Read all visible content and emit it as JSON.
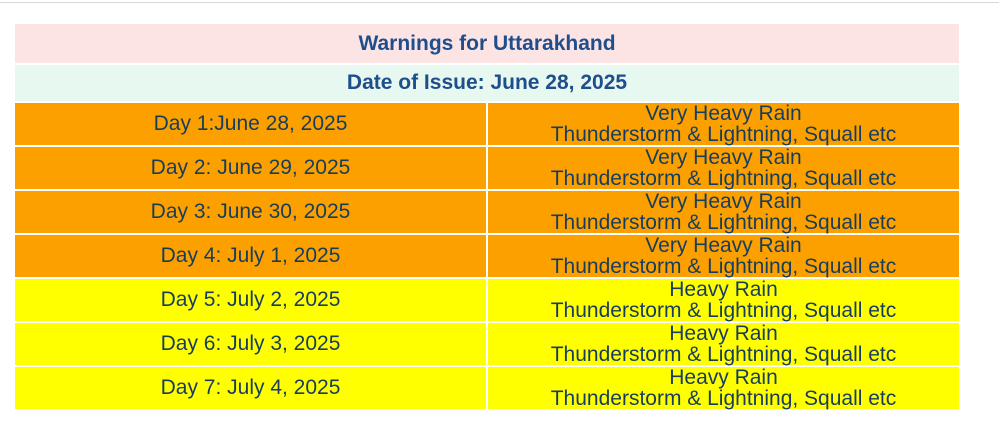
{
  "title": "Warnings for Uttarakhand",
  "date_of_issue": "Date of Issue: June 28, 2025",
  "days": [
    {
      "day": "Day 1:June 28, 2025",
      "line1": "Very Heavy Rain",
      "line2": "Thunderstorm & Lightning, Squall etc",
      "level": "orange"
    },
    {
      "day": "Day 2: June 29, 2025",
      "line1": "Very Heavy Rain",
      "line2": "Thunderstorm & Lightning, Squall etc",
      "level": "orange"
    },
    {
      "day": "Day 3: June 30, 2025",
      "line1": "Very Heavy Rain",
      "line2": "Thunderstorm & Lightning, Squall etc",
      "level": "orange"
    },
    {
      "day": "Day 4: July 1, 2025",
      "line1": "Very Heavy Rain",
      "line2": "Thunderstorm & Lightning, Squall etc",
      "level": "orange"
    },
    {
      "day": "Day 5: July 2, 2025",
      "line1": "Heavy Rain",
      "line2": "Thunderstorm & Lightning, Squall etc",
      "level": "yellow"
    },
    {
      "day": "Day 6: July 3, 2025",
      "line1": "Heavy Rain",
      "line2": "Thunderstorm & Lightning, Squall etc",
      "level": "yellow"
    },
    {
      "day": "Day 7: July 4, 2025",
      "line1": "Heavy Rain",
      "line2": "Thunderstorm & Lightning, Squall etc",
      "level": "yellow"
    }
  ],
  "colors": {
    "orange": "#fca000",
    "yellow": "#ffff00",
    "title_bg": "#fde4e4",
    "date_bg": "#e6f8ef",
    "heading_text": "#1f4e8c"
  }
}
